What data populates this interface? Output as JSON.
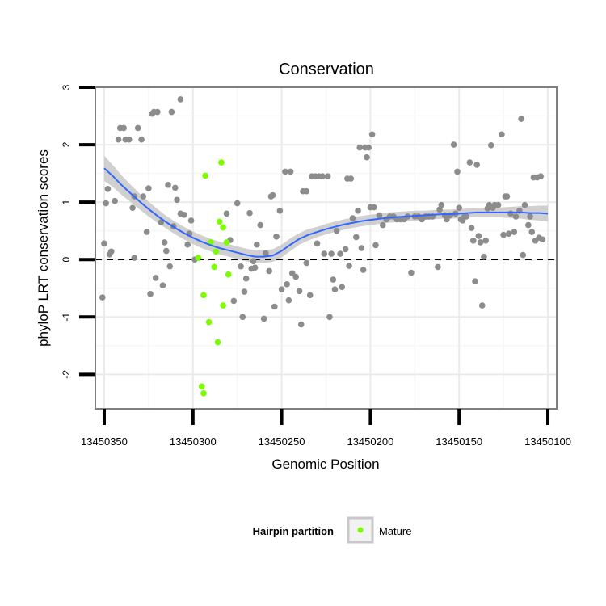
{
  "chart_data": {
    "type": "scatter",
    "title": "Conservation",
    "xlabel": "Genomic Position",
    "ylabel": "phyloP LRT conservation scores",
    "xlim": [
      13450355,
      13450095
    ],
    "ylim": [
      -2.6,
      3.0
    ],
    "x_reversed": true,
    "xticks": [
      13450350,
      13450300,
      13450250,
      13450200,
      13450150,
      13450100
    ],
    "yticks": [
      -2,
      -1,
      0,
      1,
      2,
      3
    ],
    "grid": true,
    "reference_line": {
      "y": 0,
      "style": "dashed"
    },
    "legend": {
      "title": "Hairpin partition",
      "placement": "bottom",
      "entries": [
        {
          "label": "Mature",
          "color": "#7cfc00"
        }
      ]
    },
    "colors": {
      "other": "#8c8c8c",
      "mature": "#7cfc00",
      "smooth": "#3366ff",
      "ribbon": "#c8c8c8",
      "panel_border": "#7f7f7f",
      "grid": "#ebebeb"
    },
    "series": [
      {
        "name": "Mature",
        "color": "#7cfc00",
        "points": [
          {
            "x": 13450293,
            "y": 1.46
          },
          {
            "x": 13450297,
            "y": 0.03
          },
          {
            "x": 13450294,
            "y": -0.62
          },
          {
            "x": 13450295,
            "y": -2.21
          },
          {
            "x": 13450294,
            "y": -2.33
          },
          {
            "x": 13450291,
            "y": -1.09
          },
          {
            "x": 13450290,
            "y": 0.3
          },
          {
            "x": 13450287,
            "y": 0.14
          },
          {
            "x": 13450288,
            "y": -0.13
          },
          {
            "x": 13450284,
            "y": 1.69
          },
          {
            "x": 13450285,
            "y": 0.66
          },
          {
            "x": 13450283,
            "y": 0.56
          },
          {
            "x": 13450286,
            "y": -1.44
          },
          {
            "x": 13450283,
            "y": -0.8
          },
          {
            "x": 13450280,
            "y": -0.26
          },
          {
            "x": 13450281,
            "y": 0.3
          }
        ]
      },
      {
        "name": "",
        "color": "#8c8c8c",
        "points": [
          {
            "x": 13450351,
            "y": -0.66
          },
          {
            "x": 13450350,
            "y": 0.28
          },
          {
            "x": 13450349,
            "y": 0.98
          },
          {
            "x": 13450348,
            "y": 1.23
          },
          {
            "x": 13450347,
            "y": 0.09
          },
          {
            "x": 13450346,
            "y": 0.14
          },
          {
            "x": 13450344,
            "y": 1.02
          },
          {
            "x": 13450342,
            "y": 2.09
          },
          {
            "x": 13450341,
            "y": 2.29
          },
          {
            "x": 13450339,
            "y": 2.29
          },
          {
            "x": 13450338,
            "y": 2.09
          },
          {
            "x": 13450336,
            "y": 2.09
          },
          {
            "x": 13450334,
            "y": 0.9
          },
          {
            "x": 13450333,
            "y": 1.1
          },
          {
            "x": 13450333,
            "y": 0.03
          },
          {
            "x": 13450331,
            "y": 2.29
          },
          {
            "x": 13450329,
            "y": 2.09
          },
          {
            "x": 13450328,
            "y": 1.1
          },
          {
            "x": 13450326,
            "y": 0.48
          },
          {
            "x": 13450325,
            "y": 1.24
          },
          {
            "x": 13450324,
            "y": -0.6
          },
          {
            "x": 13450323,
            "y": 2.54
          },
          {
            "x": 13450322,
            "y": 2.57
          },
          {
            "x": 13450320,
            "y": 2.57
          },
          {
            "x": 13450321,
            "y": -0.32
          },
          {
            "x": 13450318,
            "y": 0.65
          },
          {
            "x": 13450317,
            "y": -0.45
          },
          {
            "x": 13450316,
            "y": 0.3
          },
          {
            "x": 13450315,
            "y": 0.15
          },
          {
            "x": 13450314,
            "y": 1.3
          },
          {
            "x": 13450313,
            "y": -0.12
          },
          {
            "x": 13450312,
            "y": 2.57
          },
          {
            "x": 13450311,
            "y": 0.58
          },
          {
            "x": 13450310,
            "y": 1.25
          },
          {
            "x": 13450309,
            "y": 1.04
          },
          {
            "x": 13450307,
            "y": 2.79
          },
          {
            "x": 13450307,
            "y": 0.8
          },
          {
            "x": 13450305,
            "y": 0.78
          },
          {
            "x": 13450303,
            "y": 0.26
          },
          {
            "x": 13450302,
            "y": 0.45
          },
          {
            "x": 13450301,
            "y": 0.68
          },
          {
            "x": 13450299,
            "y": 0.0
          },
          {
            "x": 13450281,
            "y": 0.8
          },
          {
            "x": 13450279,
            "y": 0.34
          },
          {
            "x": 13450277,
            "y": -0.72
          },
          {
            "x": 13450275,
            "y": 0.98
          },
          {
            "x": 13450273,
            "y": -0.12
          },
          {
            "x": 13450272,
            "y": -1.0
          },
          {
            "x": 13450271,
            "y": -0.56
          },
          {
            "x": 13450270,
            "y": -0.33
          },
          {
            "x": 13450268,
            "y": 0.81
          },
          {
            "x": 13450267,
            "y": -0.16
          },
          {
            "x": 13450266,
            "y": -0.03
          },
          {
            "x": 13450265,
            "y": -0.14
          },
          {
            "x": 13450264,
            "y": 0.26
          },
          {
            "x": 13450262,
            "y": 0.6
          },
          {
            "x": 13450260,
            "y": -1.03
          },
          {
            "x": 13450259,
            "y": 0.11
          },
          {
            "x": 13450257,
            "y": -0.2
          },
          {
            "x": 13450256,
            "y": 1.1
          },
          {
            "x": 13450255,
            "y": 1.12
          },
          {
            "x": 13450254,
            "y": -0.82
          },
          {
            "x": 13450253,
            "y": 0.4
          },
          {
            "x": 13450251,
            "y": 0.85
          },
          {
            "x": 13450250,
            "y": -0.52
          },
          {
            "x": 13450248,
            "y": 1.53
          },
          {
            "x": 13450247,
            "y": -0.43
          },
          {
            "x": 13450246,
            "y": -0.71
          },
          {
            "x": 13450245,
            "y": 1.53
          },
          {
            "x": 13450244,
            "y": -0.24
          },
          {
            "x": 13450242,
            "y": -0.3
          },
          {
            "x": 13450240,
            "y": -0.55
          },
          {
            "x": 13450239,
            "y": -1.13
          },
          {
            "x": 13450238,
            "y": 1.19
          },
          {
            "x": 13450236,
            "y": 1.19
          },
          {
            "x": 13450236,
            "y": -0.06
          },
          {
            "x": 13450234,
            "y": -0.62
          },
          {
            "x": 13450233,
            "y": 1.45
          },
          {
            "x": 13450231,
            "y": 1.45
          },
          {
            "x": 13450230,
            "y": 0.28
          },
          {
            "x": 13450229,
            "y": 1.45
          },
          {
            "x": 13450227,
            "y": 1.45
          },
          {
            "x": 13450226,
            "y": 0.1
          },
          {
            "x": 13450224,
            "y": 1.45
          },
          {
            "x": 13450223,
            "y": -1.0
          },
          {
            "x": 13450222,
            "y": 0.1
          },
          {
            "x": 13450221,
            "y": -0.35
          },
          {
            "x": 13450220,
            "y": -0.52
          },
          {
            "x": 13450219,
            "y": 0.5
          },
          {
            "x": 13450217,
            "y": 0.1
          },
          {
            "x": 13450216,
            "y": -0.48
          },
          {
            "x": 13450214,
            "y": 0.18
          },
          {
            "x": 13450213,
            "y": 1.41
          },
          {
            "x": 13450212,
            "y": -0.11
          },
          {
            "x": 13450211,
            "y": 1.41
          },
          {
            "x": 13450210,
            "y": 0.72
          },
          {
            "x": 13450208,
            "y": 0.39
          },
          {
            "x": 13450207,
            "y": 0.85
          },
          {
            "x": 13450206,
            "y": 1.95
          },
          {
            "x": 13450205,
            "y": 0.2
          },
          {
            "x": 13450204,
            "y": -0.18
          },
          {
            "x": 13450203,
            "y": 1.95
          },
          {
            "x": 13450202,
            "y": 1.78
          },
          {
            "x": 13450201,
            "y": 1.95
          },
          {
            "x": 13450200,
            "y": 0.91
          },
          {
            "x": 13450199,
            "y": 2.18
          },
          {
            "x": 13450198,
            "y": 0.91
          },
          {
            "x": 13450197,
            "y": 0.25
          },
          {
            "x": 13450195,
            "y": 0.77
          },
          {
            "x": 13450193,
            "y": 0.6
          },
          {
            "x": 13450191,
            "y": 0.7
          },
          {
            "x": 13450189,
            "y": 0.75
          },
          {
            "x": 13450187,
            "y": 0.75
          },
          {
            "x": 13450185,
            "y": 0.7
          },
          {
            "x": 13450183,
            "y": 0.7
          },
          {
            "x": 13450181,
            "y": 0.7
          },
          {
            "x": 13450179,
            "y": 0.75
          },
          {
            "x": 13450177,
            "y": -0.23
          },
          {
            "x": 13450175,
            "y": 0.75
          },
          {
            "x": 13450173,
            "y": 0.75
          },
          {
            "x": 13450171,
            "y": 0.7
          },
          {
            "x": 13450169,
            "y": 0.75
          },
          {
            "x": 13450167,
            "y": 0.75
          },
          {
            "x": 13450165,
            "y": 0.75
          },
          {
            "x": 13450162,
            "y": -0.13
          },
          {
            "x": 13450161,
            "y": 0.87
          },
          {
            "x": 13450160,
            "y": 0.95
          },
          {
            "x": 13450158,
            "y": 0.77
          },
          {
            "x": 13450157,
            "y": 0.7
          },
          {
            "x": 13450155,
            "y": 0.77
          },
          {
            "x": 13450153,
            "y": 2.0
          },
          {
            "x": 13450152,
            "y": 0.8
          },
          {
            "x": 13450151,
            "y": 1.53
          },
          {
            "x": 13450150,
            "y": 0.9
          },
          {
            "x": 13450149,
            "y": 0.7
          },
          {
            "x": 13450148,
            "y": 0.68
          },
          {
            "x": 13450147,
            "y": 0.75
          },
          {
            "x": 13450146,
            "y": 0.75
          },
          {
            "x": 13450144,
            "y": 1.69
          },
          {
            "x": 13450143,
            "y": 0.55
          },
          {
            "x": 13450142,
            "y": 0.33
          },
          {
            "x": 13450141,
            "y": -0.38
          },
          {
            "x": 13450140,
            "y": 1.65
          },
          {
            "x": 13450139,
            "y": 0.41
          },
          {
            "x": 13450138,
            "y": 0.3
          },
          {
            "x": 13450137,
            "y": -0.8
          },
          {
            "x": 13450136,
            "y": 0.05
          },
          {
            "x": 13450135,
            "y": 0.33
          },
          {
            "x": 13450134,
            "y": 0.89
          },
          {
            "x": 13450133,
            "y": 0.95
          },
          {
            "x": 13450132,
            "y": 1.99
          },
          {
            "x": 13450131,
            "y": 0.9
          },
          {
            "x": 13450130,
            "y": 0.95
          },
          {
            "x": 13450128,
            "y": 0.95
          },
          {
            "x": 13450126,
            "y": 2.18
          },
          {
            "x": 13450125,
            "y": 0.43
          },
          {
            "x": 13450124,
            "y": 1.1
          },
          {
            "x": 13450123,
            "y": 1.1
          },
          {
            "x": 13450122,
            "y": 0.45
          },
          {
            "x": 13450121,
            "y": 0.8
          },
          {
            "x": 13450119,
            "y": 0.48
          },
          {
            "x": 13450118,
            "y": 0.75
          },
          {
            "x": 13450116,
            "y": 0.85
          },
          {
            "x": 13450115,
            "y": 2.45
          },
          {
            "x": 13450114,
            "y": 0.08
          },
          {
            "x": 13450113,
            "y": 0.95
          },
          {
            "x": 13450111,
            "y": 0.6
          },
          {
            "x": 13450110,
            "y": 0.75
          },
          {
            "x": 13450109,
            "y": 0.48
          },
          {
            "x": 13450108,
            "y": 1.43
          },
          {
            "x": 13450107,
            "y": 0.33
          },
          {
            "x": 13450106,
            "y": 1.43
          },
          {
            "x": 13450105,
            "y": 0.38
          },
          {
            "x": 13450104,
            "y": 1.45
          },
          {
            "x": 13450103,
            "y": 0.35
          }
        ]
      }
    ],
    "smooth": {
      "x": [
        13450350,
        13450345,
        13450340,
        13450335,
        13450330,
        13450325,
        13450320,
        13450315,
        13450310,
        13450305,
        13450300,
        13450295,
        13450290,
        13450285,
        13450280,
        13450275,
        13450270,
        13450265,
        13450260,
        13450255,
        13450250,
        13450245,
        13450240,
        13450235,
        13450230,
        13450225,
        13450220,
        13450215,
        13450210,
        13450205,
        13450200,
        13450195,
        13450190,
        13450185,
        13450180,
        13450175,
        13450170,
        13450165,
        13450160,
        13450155,
        13450150,
        13450145,
        13450140,
        13450135,
        13450130,
        13450125,
        13450120,
        13450115,
        13450110,
        13450105,
        13450100
      ],
      "y": [
        1.59,
        1.45,
        1.29,
        1.15,
        1.01,
        0.88,
        0.76,
        0.65,
        0.55,
        0.46,
        0.38,
        0.31,
        0.25,
        0.2,
        0.16,
        0.12,
        0.08,
        0.05,
        0.05,
        0.07,
        0.15,
        0.26,
        0.36,
        0.43,
        0.48,
        0.53,
        0.57,
        0.61,
        0.64,
        0.67,
        0.69,
        0.71,
        0.73,
        0.74,
        0.75,
        0.76,
        0.77,
        0.78,
        0.79,
        0.79,
        0.8,
        0.81,
        0.82,
        0.82,
        0.82,
        0.82,
        0.82,
        0.82,
        0.81,
        0.81,
        0.8
      ],
      "se": [
        0.22,
        0.19,
        0.17,
        0.15,
        0.14,
        0.13,
        0.12,
        0.11,
        0.11,
        0.11,
        0.11,
        0.11,
        0.11,
        0.11,
        0.11,
        0.11,
        0.11,
        0.11,
        0.11,
        0.11,
        0.11,
        0.11,
        0.1,
        0.1,
        0.09,
        0.09,
        0.09,
        0.09,
        0.09,
        0.09,
        0.09,
        0.09,
        0.09,
        0.09,
        0.09,
        0.09,
        0.08,
        0.08,
        0.08,
        0.08,
        0.08,
        0.08,
        0.08,
        0.08,
        0.08,
        0.09,
        0.1,
        0.11,
        0.12,
        0.13,
        0.14
      ]
    }
  }
}
